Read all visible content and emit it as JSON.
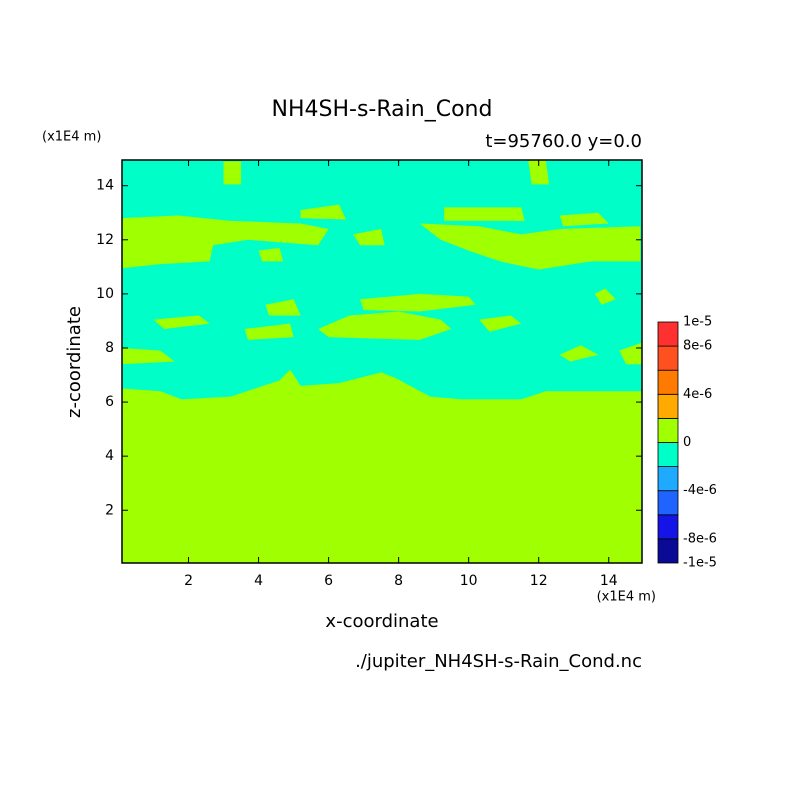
{
  "chart_data": {
    "type": "contour",
    "title": "NH4SH-s-Rain_Cond",
    "subtitle": "t=95760.0 y=0.0",
    "x_label": "x-coordinate",
    "y_label": "z-coordinate",
    "x_unit": "(x1E4 m)",
    "y_unit": "(x1E4 m)",
    "source": "./jupiter_NH4SH-s-Rain_Cond.nc",
    "xlim": [
      0.1,
      14.95
    ],
    "ylim": [
      0.05,
      14.95
    ],
    "xticks": [
      2,
      4,
      6,
      8,
      10,
      12,
      14
    ],
    "yticks": [
      2,
      4,
      6,
      8,
      10,
      12,
      14
    ],
    "regions": [
      {
        "value": -1e-06,
        "x": [
          0.1,
          14.95,
          14.95,
          0.1
        ],
        "y": [
          0.05,
          0.05,
          14.95,
          14.95
        ]
      },
      {
        "value": 1e-06,
        "x": [
          0.1,
          0.1,
          1.2,
          1.8,
          3.2,
          4.6,
          4.9,
          5.2,
          6.3,
          6.9,
          7.5,
          7.9,
          8.9,
          9.8,
          11.5,
          12.2,
          14.95,
          14.95
        ],
        "y": [
          0.05,
          6.5,
          6.4,
          6.1,
          6.2,
          6.8,
          7.2,
          6.6,
          6.7,
          6.9,
          7.1,
          6.9,
          6.2,
          6.1,
          6.1,
          6.4,
          6.4,
          0.05
        ]
      },
      {
        "value": 1e-06,
        "x": [
          0.1,
          1.7,
          3.2,
          5.2,
          6.0,
          5.7,
          3.7,
          2.7,
          2.6,
          1.2,
          0.1
        ],
        "y": [
          12.8,
          12.9,
          12.7,
          12.6,
          12.4,
          11.8,
          12.0,
          11.8,
          11.2,
          11.1,
          10.95
        ]
      },
      {
        "value": 1e-06,
        "x": [
          5.2,
          6.3,
          6.5,
          5.2
        ],
        "y": [
          13.1,
          13.3,
          12.75,
          12.8
        ]
      },
      {
        "value": 1e-06,
        "x": [
          9.3,
          11.5,
          11.6,
          9.3
        ],
        "y": [
          13.2,
          13.2,
          12.7,
          12.7
        ]
      },
      {
        "value": 1e-06,
        "x": [
          8.6,
          10.3,
          11.5,
          12.6,
          14.9,
          14.9,
          13.5,
          12.0,
          10.9,
          10.0,
          9.2
        ],
        "y": [
          12.6,
          12.5,
          12.2,
          12.4,
          12.5,
          11.2,
          11.2,
          10.9,
          11.2,
          11.6,
          12.0
        ]
      },
      {
        "value": 1e-06,
        "x": [
          6.7,
          7.5,
          7.6,
          6.9
        ],
        "y": [
          12.2,
          12.4,
          11.8,
          11.8
        ]
      },
      {
        "value": 1e-06,
        "x": [
          12.6,
          13.7,
          14.0,
          12.7
        ],
        "y": [
          12.9,
          13.0,
          12.6,
          12.5
        ]
      },
      {
        "value": 1e-06,
        "x": [
          4.0,
          4.6,
          4.7,
          4.1
        ],
        "y": [
          11.6,
          11.7,
          11.2,
          11.2
        ]
      },
      {
        "value": 1e-06,
        "x": [
          5.7,
          6.6,
          8.0,
          9.2,
          9.5,
          8.6,
          6.0
        ],
        "y": [
          8.7,
          9.2,
          9.35,
          9.05,
          8.7,
          8.3,
          8.4
        ]
      },
      {
        "value": 1e-06,
        "x": [
          1.0,
          2.3,
          2.6,
          1.3
        ],
        "y": [
          9.05,
          9.2,
          8.9,
          8.7
        ]
      },
      {
        "value": 1e-06,
        "x": [
          3.6,
          4.9,
          5.0,
          3.7
        ],
        "y": [
          8.7,
          8.9,
          8.4,
          8.3
        ]
      },
      {
        "value": 1e-06,
        "x": [
          4.2,
          5.0,
          5.2,
          4.3
        ],
        "y": [
          9.6,
          9.8,
          9.2,
          9.2
        ]
      },
      {
        "value": 1e-06,
        "x": [
          6.9,
          8.6,
          10.0,
          10.2,
          8.6,
          7.0
        ],
        "y": [
          9.8,
          10.0,
          9.9,
          9.6,
          9.35,
          9.4
        ]
      },
      {
        "value": 1e-06,
        "x": [
          10.3,
          11.2,
          11.5,
          10.6
        ],
        "y": [
          9.05,
          9.2,
          8.9,
          8.6
        ]
      },
      {
        "value": 1e-06,
        "x": [
          13.6,
          13.9,
          14.2,
          13.8
        ],
        "y": [
          10.0,
          10.2,
          9.8,
          9.6
        ]
      },
      {
        "value": 1e-06,
        "x": [
          0.1,
          1.2,
          1.6,
          0.1
        ],
        "y": [
          8.0,
          7.9,
          7.5,
          7.4
        ]
      },
      {
        "value": 1e-06,
        "x": [
          12.6,
          13.2,
          13.7,
          12.9
        ],
        "y": [
          7.75,
          8.1,
          7.75,
          7.5
        ]
      },
      {
        "value": 1e-06,
        "x": [
          14.3,
          14.95,
          14.95,
          14.5
        ],
        "y": [
          7.9,
          8.2,
          7.4,
          7.4
        ]
      },
      {
        "value": 1e-06,
        "x": [
          3.0,
          3.5,
          3.5,
          3.0
        ],
        "y": [
          14.9,
          14.9,
          14.05,
          14.05
        ]
      },
      {
        "value": 1e-06,
        "x": [
          11.7,
          12.2,
          12.3,
          11.8
        ],
        "y": [
          14.95,
          14.95,
          14.05,
          14.05
        ]
      }
    ],
    "colorbar": {
      "levels": [
        -1e-05,
        -8e-06,
        -6e-06,
        -4e-06,
        -2e-06,
        0,
        2e-06,
        4e-06,
        6e-06,
        8e-06,
        1e-05
      ],
      "colors": [
        "#0a0a96",
        "#1414e6",
        "#1f64ff",
        "#1eaaff",
        "#00ffc8",
        "#a0ff00",
        "#ffaa00",
        "#ff7a00",
        "#ff5020",
        "#ff3030"
      ],
      "ticks": [
        {
          "value": -1e-05,
          "label": "-1e-5"
        },
        {
          "value": -8e-06,
          "label": "-8e-6"
        },
        {
          "value": -4e-06,
          "label": "-4e-6"
        },
        0,
        {
          "value": 4e-06,
          "label": "4e-6"
        },
        {
          "value": 8e-06,
          "label": "8e-6"
        },
        {
          "value": 1e-05,
          "label": "1e-5"
        }
      ]
    }
  }
}
